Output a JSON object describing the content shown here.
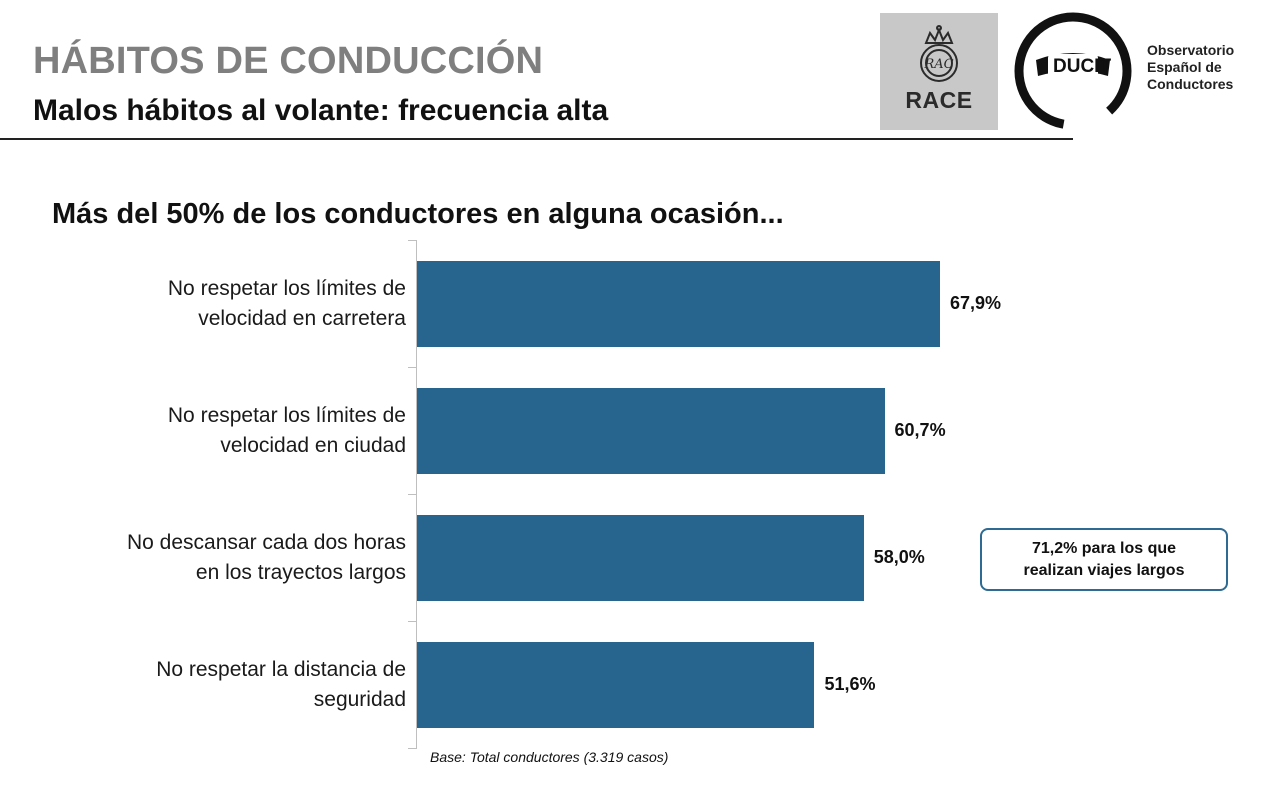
{
  "header": {
    "title": "HÁBITOS DE CONDUCCIÓN",
    "subtitle": "Malos hábitos al volante: frecuencia alta"
  },
  "logos": {
    "race": "RACE",
    "ducit": "DUCIT",
    "observatorio_lines": [
      "Observatorio",
      "Español de",
      "Conductores"
    ]
  },
  "colors": {
    "bar": "#27658f",
    "callout_border": "#2e6a91"
  },
  "chart_data": {
    "type": "bar",
    "orientation": "horizontal",
    "title": "Más del 50% de los conductores en alguna ocasión...",
    "categories": [
      [
        "No respetar los límites de",
        "velocidad en carretera"
      ],
      [
        "No respetar los límites de",
        "velocidad en ciudad"
      ],
      [
        "No descansar cada dos horas",
        "en los trayectos largos"
      ],
      [
        "No respetar la distancia de",
        "seguridad"
      ]
    ],
    "values": [
      67.9,
      60.7,
      58.0,
      51.6
    ],
    "value_labels": [
      "67,9%",
      "60,7%",
      "58,0%",
      "51,6%"
    ],
    "xlim": [
      0,
      100
    ],
    "grid": false,
    "annotation": {
      "lines": [
        "71,2% para los que",
        "realizan viajes largos"
      ],
      "category_index": 2
    },
    "note": "Base: Total conductores  (3.319 casos)"
  }
}
